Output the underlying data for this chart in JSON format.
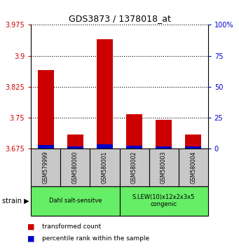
{
  "title": "GDS3873 / 1378018_at",
  "samples": [
    "GSM579999",
    "GSM580000",
    "GSM580001",
    "GSM580002",
    "GSM580003",
    "GSM580004"
  ],
  "red_values": [
    3.865,
    3.71,
    3.94,
    3.758,
    3.745,
    3.71
  ],
  "blue_values": [
    3.684,
    3.68,
    3.686,
    3.682,
    3.681,
    3.681
  ],
  "baseline": 3.675,
  "ylim_left": [
    3.675,
    3.975
  ],
  "yticks_left": [
    3.675,
    3.75,
    3.825,
    3.9,
    3.975
  ],
  "ytick_labels_left": [
    "3.675",
    "3.75",
    "3.825",
    "3.9",
    "3.975"
  ],
  "ylim_right": [
    0,
    100
  ],
  "yticks_right": [
    0,
    25,
    50,
    75,
    100
  ],
  "ytick_labels_right": [
    "0",
    "25",
    "50",
    "75",
    "100%"
  ],
  "groups": [
    {
      "label": "Dahl salt-sensitve",
      "col_indices": [
        0,
        1,
        2
      ],
      "color": "#66ee66"
    },
    {
      "label": "S.LEW(10)x12x2x3x5\ncongenic",
      "col_indices": [
        3,
        4,
        5
      ],
      "color": "#66ee66"
    }
  ],
  "legend_items": [
    {
      "color": "#cc0000",
      "label": "transformed count"
    },
    {
      "color": "#0000cc",
      "label": "percentile rank within the sample"
    }
  ],
  "bar_width": 0.55,
  "red_color": "#cc0000",
  "blue_color": "#0000cc",
  "label_color_left": "#cc0000",
  "label_color_right": "#0000cc",
  "sample_box_color": "#c8c8c8",
  "strain_label": "strain ▶"
}
